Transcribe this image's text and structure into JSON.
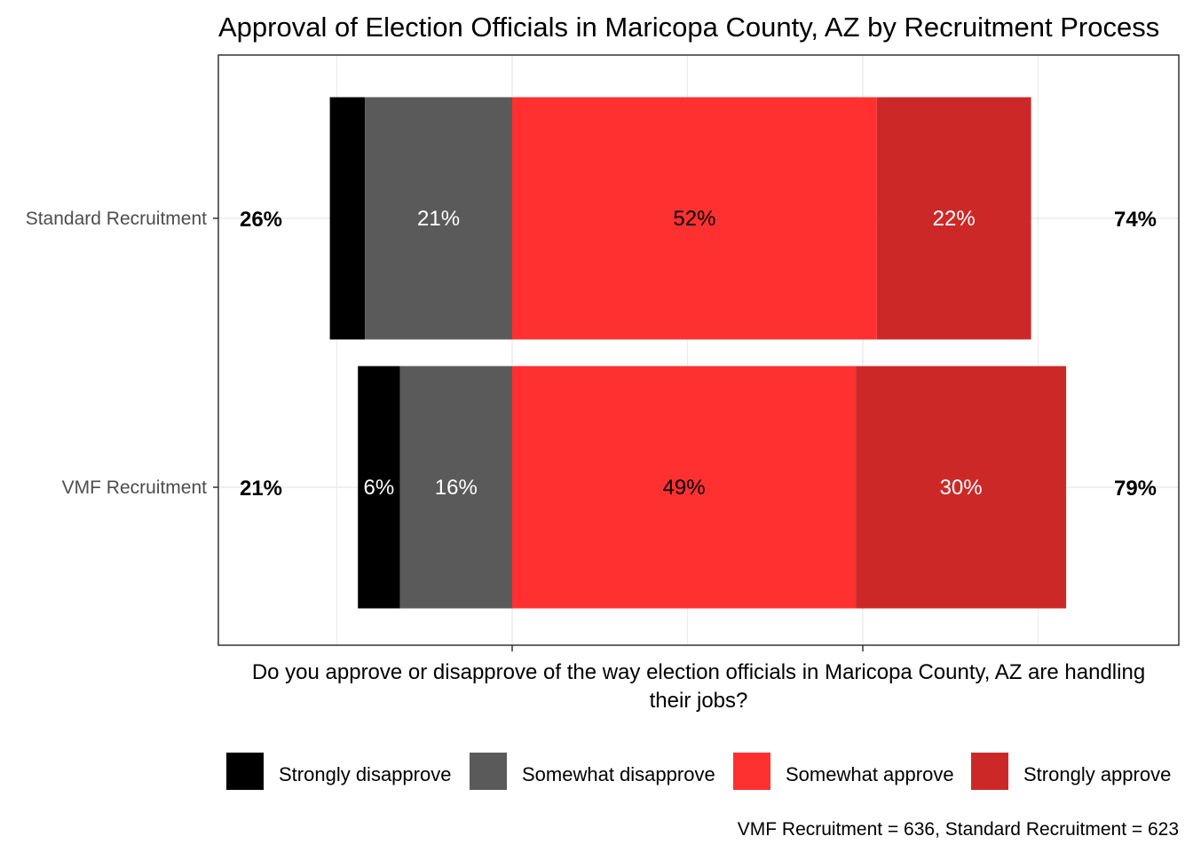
{
  "chart_data": {
    "type": "bar",
    "orientation": "horizontal",
    "stacking": "diverging",
    "title": "Approval of Election Officials in Maricopa County, AZ by Recruitment Process",
    "xlabel": "Do you approve or disapprove of the way election officials in Maricopa County, AZ are handling their jobs?",
    "ylabel": "",
    "categories": [
      "Standard Recruitment",
      "VMF Recruitment"
    ],
    "series": [
      {
        "name": "Strongly disapprove",
        "values": [
          5,
          6
        ],
        "labels": [
          "",
          "6%"
        ],
        "color": "#000000",
        "label_color": "#ffffff"
      },
      {
        "name": "Somewhat disapprove",
        "values": [
          21,
          16
        ],
        "labels": [
          "21%",
          "16%"
        ],
        "color": "#5a5a5a",
        "label_color": "#ffffff"
      },
      {
        "name": "Somewhat approve",
        "values": [
          52,
          49
        ],
        "labels": [
          "52%",
          "49%"
        ],
        "color": "#ff3030",
        "label_color": "#000000"
      },
      {
        "name": "Strongly approve",
        "values": [
          22,
          30
        ],
        "labels": [
          "22%",
          "30%"
        ],
        "color": "#cd2828",
        "label_color": "#ffffff"
      }
    ],
    "disapprove_totals": [
      "26%",
      "21%"
    ],
    "approve_totals": [
      "74%",
      "79%"
    ],
    "xlim": [
      -42,
      95
    ],
    "grid": true,
    "legend_position": "bottom",
    "caption": "VMF Recruitment =  636, Standard Recruitment = 623"
  }
}
